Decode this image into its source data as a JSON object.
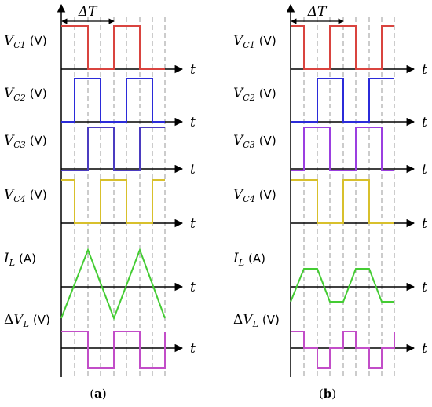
{
  "panels": [
    {
      "id": "a",
      "caption_pre": "(",
      "caption_letter": "a",
      "caption_post": ")",
      "delta_t_label": "ΔT",
      "rows": [
        {
          "var": "V",
          "sub": "C1",
          "unit": "(V)",
          "axis": "t",
          "color": "#d9443f"
        },
        {
          "var": "V",
          "sub": "C2",
          "unit": "(V)",
          "axis": "t",
          "color": "#2b2bd9"
        },
        {
          "var": "V",
          "sub": "C3",
          "unit": "(V)",
          "axis": "t",
          "color": "#4b3cc0"
        },
        {
          "var": "V",
          "sub": "C4",
          "unit": "(V)",
          "axis": "t",
          "color": "#d8c02c"
        },
        {
          "var": "I",
          "sub": "L",
          "unit": "(A)",
          "axis": "t",
          "color": "#44cc33"
        },
        {
          "pre": "Δ",
          "var": "V",
          "sub": "L",
          "unit": "(V)",
          "axis": "t",
          "color": "#c24ec8"
        }
      ]
    },
    {
      "id": "b",
      "caption_pre": "(",
      "caption_letter": "b",
      "caption_post": ")",
      "delta_t_label": "ΔT",
      "rows": [
        {
          "var": "V",
          "sub": "C1",
          "unit": "(V)",
          "axis": "t",
          "color": "#d9443f"
        },
        {
          "var": "V",
          "sub": "C2",
          "unit": "(V)",
          "axis": "t",
          "color": "#2b2bd9"
        },
        {
          "var": "V",
          "sub": "C3",
          "unit": "(V)",
          "axis": "t",
          "color": "#9b3fe0"
        },
        {
          "var": "V",
          "sub": "C4",
          "unit": "(V)",
          "axis": "t",
          "color": "#d8c02c"
        },
        {
          "var": "I",
          "sub": "L",
          "unit": "(A)",
          "axis": "t",
          "color": "#44cc33"
        },
        {
          "pre": "Δ",
          "var": "V",
          "sub": "L",
          "unit": "(V)",
          "axis": "t",
          "color": "#c24ec8"
        }
      ]
    }
  ]
}
